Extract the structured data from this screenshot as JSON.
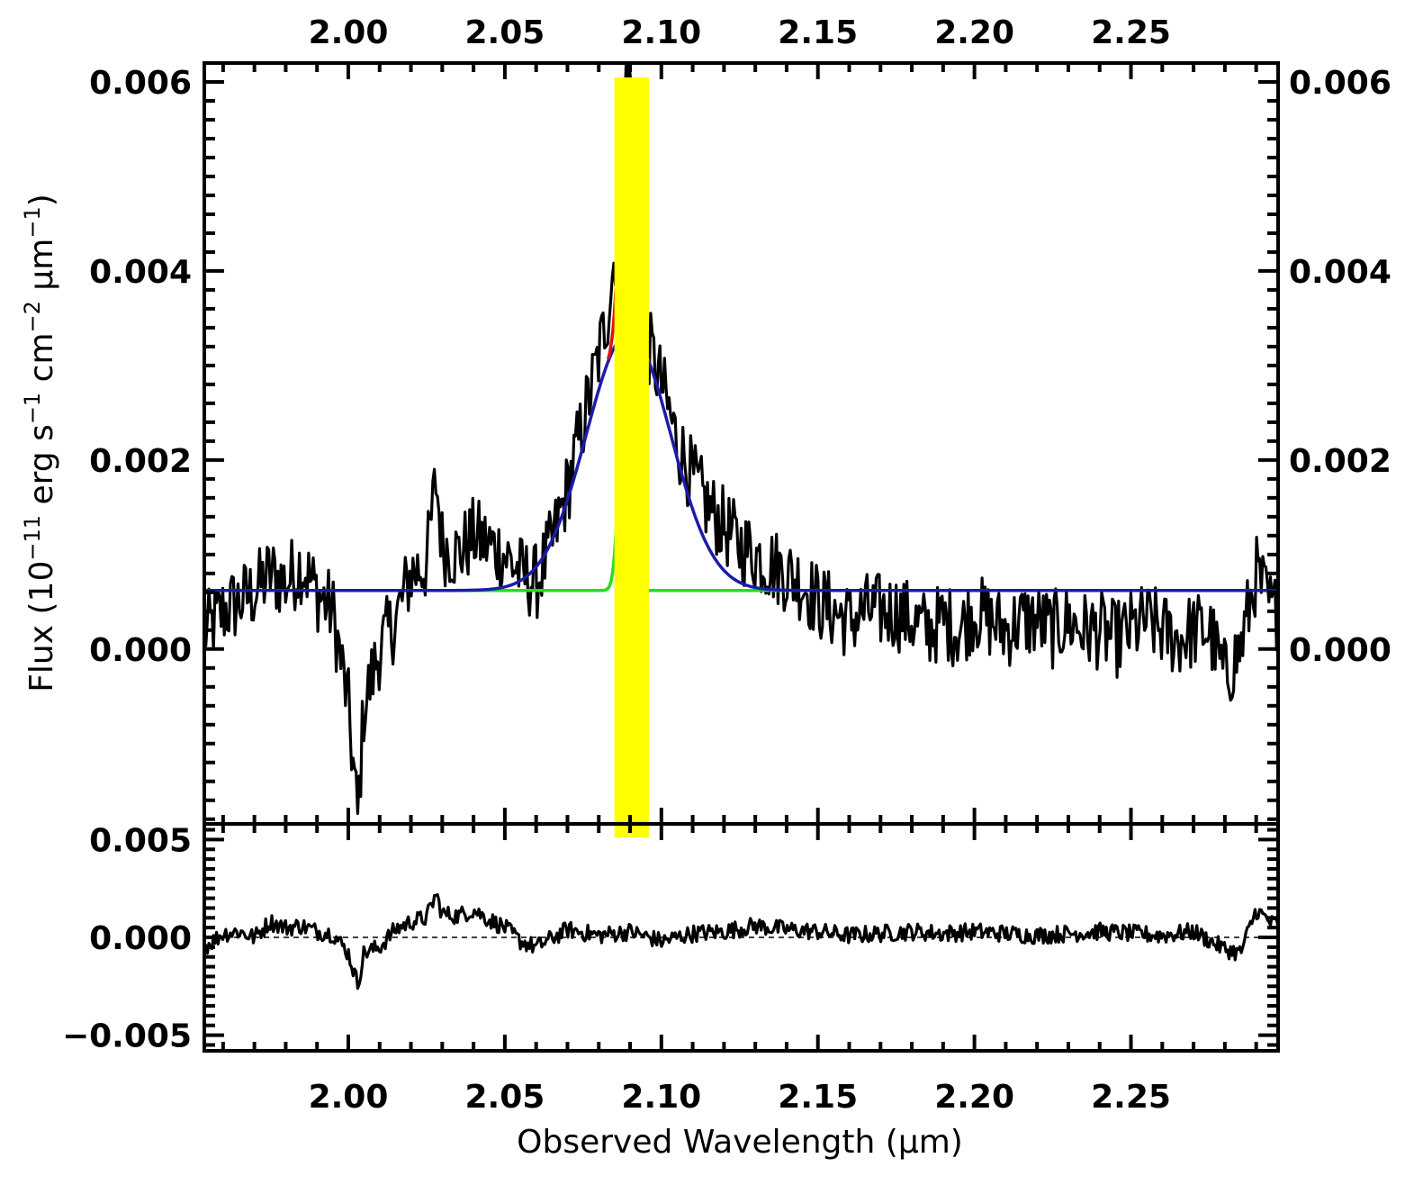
{
  "chart_data": [
    {
      "panel": "top",
      "type": "line",
      "title": "",
      "xlabel": "",
      "ylabel": "Flux (10⁻¹¹ erg s⁻¹ cm⁻² μm⁻¹)",
      "ylabel_parts": [
        "Flux (10",
        "−11",
        " erg s",
        "−1",
        " cm",
        "−2",
        " μm",
        "−1",
        ")"
      ],
      "xlim": [
        1.954,
        2.297
      ],
      "ylim": [
        -0.00185,
        0.0062
      ],
      "x_ticks": [
        "2.00",
        "2.05",
        "2.10",
        "2.15",
        "2.20",
        "2.25"
      ],
      "x_tick_values": [
        2.0,
        2.05,
        2.1,
        2.15,
        2.2,
        2.25
      ],
      "y_ticks": [
        "0.000",
        "0.002",
        "0.004",
        "0.006"
      ],
      "y_tick_values": [
        0.0,
        0.002,
        0.004,
        0.006
      ],
      "grid": false,
      "highlight_band": {
        "x_range": [
          2.085,
          2.096
        ],
        "color": "#ffff00"
      },
      "continuum": 0.00062,
      "components": [
        {
          "role": "broad",
          "color": "#1c1ca8",
          "center": 2.0895,
          "sigma": 0.0135,
          "amplitude": 0.00272
        },
        {
          "role": "narrow",
          "color": "#22dd22",
          "center": 2.0885,
          "sigma": 0.0018,
          "amplitude": 0.0025
        },
        {
          "role": "total",
          "color": "#e01010",
          "x_range": [
            2.083,
            2.096
          ]
        }
      ],
      "series": [
        {
          "role": "observed",
          "color": "#000000",
          "x": [
            1.955,
            1.96,
            1.965,
            1.97,
            1.975,
            1.98,
            1.985,
            1.99,
            1.995,
            2.0,
            2.003,
            2.005,
            2.01,
            2.015,
            2.02,
            2.025,
            2.028,
            2.03,
            2.035,
            2.04,
            2.045,
            2.05,
            2.055,
            2.06,
            2.065,
            2.07,
            2.075,
            2.08,
            2.083,
            2.086,
            2.088,
            2.09,
            2.092,
            2.095,
            2.1,
            2.105,
            2.11,
            2.115,
            2.12,
            2.125,
            2.13,
            2.135,
            2.14,
            2.145,
            2.15,
            2.155,
            2.16,
            2.165,
            2.17,
            2.175,
            2.18,
            2.185,
            2.19,
            2.195,
            2.2,
            2.205,
            2.21,
            2.215,
            2.22,
            2.225,
            2.23,
            2.235,
            2.24,
            2.245,
            2.25,
            2.255,
            2.26,
            2.265,
            2.27,
            2.275,
            2.28,
            2.285,
            2.29,
            2.295
          ],
          "y": [
            0.0002,
            0.0004,
            0.0005,
            0.0006,
            0.0008,
            0.0007,
            0.0009,
            0.0006,
            0.0004,
            -0.0006,
            -0.0018,
            -0.0006,
            0.0,
            0.0003,
            0.0008,
            0.0009,
            0.0018,
            0.0011,
            0.001,
            0.0012,
            0.0011,
            0.001,
            0.0008,
            0.0007,
            0.0011,
            0.0017,
            0.0024,
            0.0031,
            0.0036,
            0.0044,
            0.0059,
            0.0061,
            0.0046,
            0.0033,
            0.0028,
            0.0022,
            0.0018,
            0.0015,
            0.0013,
            0.0011,
            0.001,
            0.0009,
            0.0008,
            0.0007,
            0.0005,
            0.0004,
            0.0003,
            0.0004,
            0.0004,
            0.0004,
            0.0003,
            0.0002,
            0.0003,
            0.0002,
            0.0004,
            0.0003,
            0.0002,
            0.0003,
            0.0003,
            0.0002,
            0.0003,
            0.0002,
            0.0002,
            0.0001,
            0.0002,
            0.0003,
            0.0002,
            0.0001,
            0.0002,
            0.0002,
            -0.0003,
            0.0,
            0.0008,
            0.0004
          ]
        }
      ]
    },
    {
      "panel": "bottom",
      "type": "line",
      "title": "",
      "xlabel": "Observed Wavelength (μm)",
      "xlabel_parts": [
        "Observed Wavelength (",
        "μ",
        "m)"
      ],
      "ylabel": "",
      "xlim": [
        1.954,
        2.297
      ],
      "ylim": [
        -0.0058,
        0.0058
      ],
      "x_ticks": [
        "2.00",
        "2.05",
        "2.10",
        "2.15",
        "2.20",
        "2.25"
      ],
      "x_tick_values": [
        2.0,
        2.05,
        2.1,
        2.15,
        2.2,
        2.25
      ],
      "y_ticks": [
        "−0.005",
        "0.000",
        "0.005"
      ],
      "y_tick_values": [
        -0.005,
        0.0,
        0.005
      ],
      "grid": false,
      "reference_line": {
        "y": 0.0,
        "style": "dashed"
      },
      "series": [
        {
          "role": "residual",
          "color": "#000000",
          "x": [
            1.955,
            1.96,
            1.965,
            1.97,
            1.975,
            1.98,
            1.985,
            1.99,
            1.995,
            2.0,
            2.003,
            2.005,
            2.01,
            2.015,
            2.02,
            2.025,
            2.028,
            2.03,
            2.035,
            2.04,
            2.045,
            2.05,
            2.055,
            2.06,
            2.07,
            2.08,
            2.09,
            2.1,
            2.11,
            2.12,
            2.13,
            2.14,
            2.15,
            2.16,
            2.17,
            2.18,
            2.19,
            2.2,
            2.21,
            2.22,
            2.23,
            2.24,
            2.25,
            2.26,
            2.27,
            2.28,
            2.285,
            2.29,
            2.295
          ],
          "y": [
            -0.0004,
            0.0002,
            0.0003,
            0.0,
            0.0008,
            0.0005,
            0.0006,
            0.0003,
            0.0002,
            -0.0008,
            -0.0024,
            -0.0008,
            -0.0005,
            0.0004,
            0.0008,
            0.001,
            0.0022,
            0.0012,
            0.0011,
            0.0014,
            0.0009,
            0.0005,
            -0.0002,
            -0.0005,
            0.0004,
            0.0001,
            0.0003,
            -0.0002,
            0.0002,
            0.0003,
            0.0006,
            0.0004,
            0.0003,
            0.0001,
            0.0002,
            0.0003,
            0.0002,
            0.0003,
            0.0002,
            0.0001,
            0.0002,
            0.0003,
            0.0002,
            0.0001,
            0.0003,
            -0.0006,
            -0.0008,
            0.0014,
            0.0007
          ]
        }
      ]
    }
  ]
}
